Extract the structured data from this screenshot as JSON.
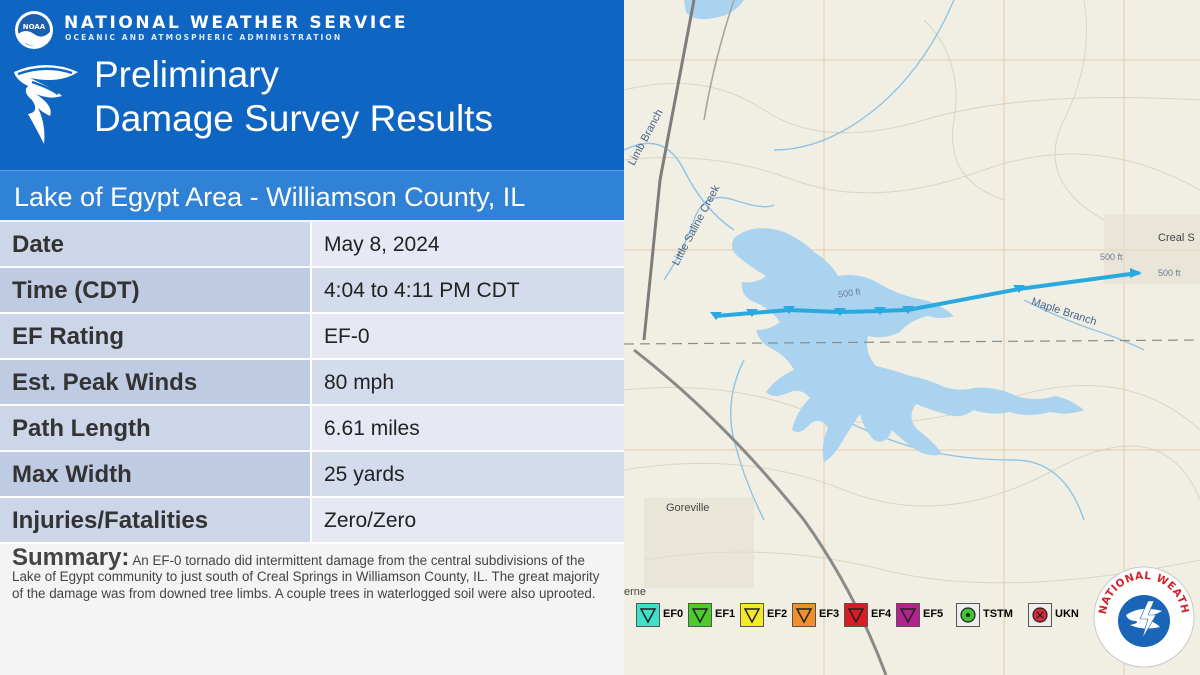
{
  "header": {
    "org_name": "NATIONAL WEATHER SERVICE",
    "org_subtitle": "OCEANIC AND ATMOSPHERIC ADMINISTRATION",
    "logo_text": "NOAA",
    "title_line1": "Preliminary",
    "title_line2": "Damage Survey Results",
    "icon": "tornado-icon"
  },
  "area_title": "Lake of Egypt Area - Williamson County, IL",
  "facts": [
    {
      "label": "Date",
      "value": "May 8, 2024"
    },
    {
      "label": "Time (CDT)",
      "value": "4:04 to 4:11 PM CDT"
    },
    {
      "label": "EF Rating",
      "value": "EF-0"
    },
    {
      "label": "Est. Peak Winds",
      "value": "80 mph"
    },
    {
      "label": "Path Length",
      "value": "6.61 miles"
    },
    {
      "label": "Max Width",
      "value": "25 yards"
    },
    {
      "label": "Injuries/Fatalities",
      "value": "Zero/Zero"
    }
  ],
  "summary": {
    "label": "Summary:",
    "text": "An EF-0 tornado did intermittent damage from the central subdivisions of the Lake of Egypt community to just south of Creal Springs in Williamson County, IL. The great majority of the damage was from downed tree limbs. A couple trees in waterlogged soil were also uprooted."
  },
  "map": {
    "labels": {
      "limb_branch": "Limb Branch",
      "little_saline_creek": "Little Saline Creek",
      "creal_springs": "Creal S",
      "contour_500_a": "500 ft",
      "contour_500_b": "500 ft",
      "contour_500_c": "500 ft",
      "maple_branch": "Maple Branch",
      "goreville": "Goreville",
      "edge_label": "erne"
    },
    "track_color": "#29a9e0",
    "lake_color": "#a9d3ee"
  },
  "legend": [
    {
      "label": "EF0",
      "color": "#3fe0c8"
    },
    {
      "label": "EF1",
      "color": "#4ccc2a"
    },
    {
      "label": "EF2",
      "color": "#f5ea2a"
    },
    {
      "label": "EF3",
      "color": "#f0902a"
    },
    {
      "label": "EF4",
      "color": "#d91c24"
    },
    {
      "label": "EF5",
      "color": "#b3228f"
    },
    {
      "label": "TSTM",
      "color": "#3fc43a"
    },
    {
      "label": "UKN",
      "color": "#d92a3a"
    }
  ],
  "seal": {
    "text": "NATIONAL WEATHER SERVICE"
  }
}
